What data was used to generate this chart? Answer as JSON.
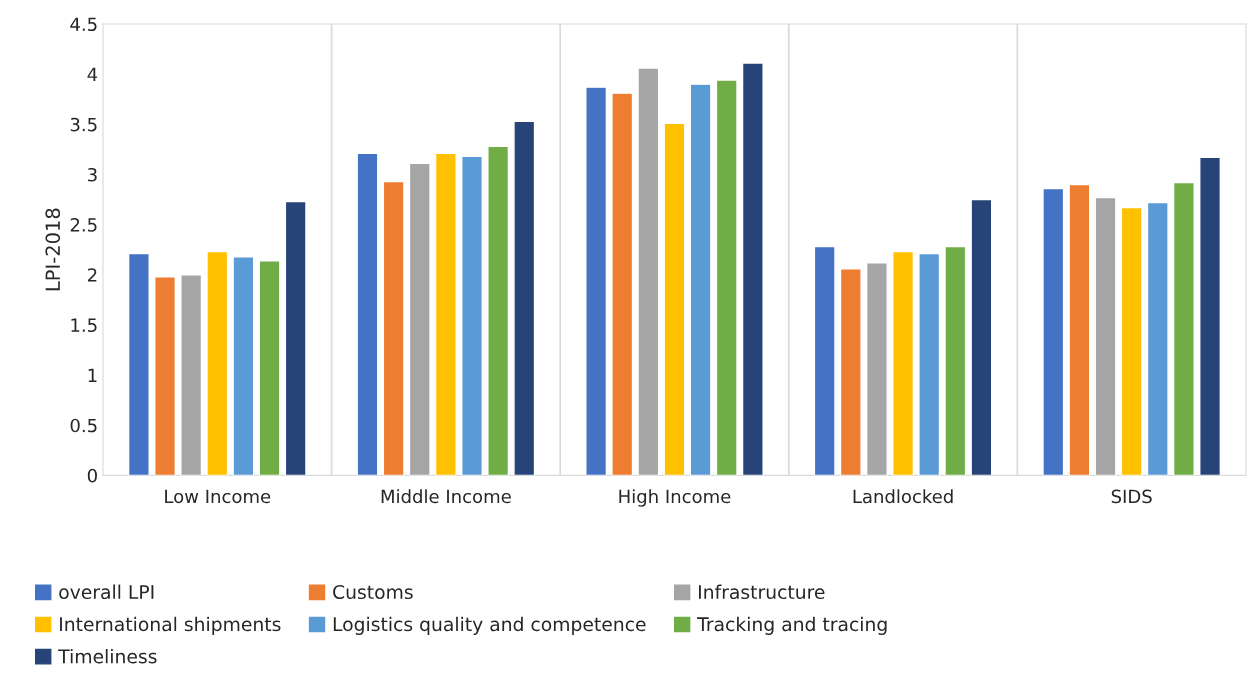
{
  "chart_data": {
    "type": "bar",
    "ylabel": "LPI-2018",
    "categories": [
      "Low Income",
      "Middle Income",
      "High Income",
      "Landlocked",
      "SIDS"
    ],
    "series": [
      {
        "name": "overall LPI",
        "color": "#4472c4",
        "values": [
          2.21,
          3.21,
          3.87,
          2.28,
          2.86
        ]
      },
      {
        "name": "Customs",
        "color": "#ed7d31",
        "values": [
          1.98,
          2.93,
          3.81,
          2.06,
          2.9
        ]
      },
      {
        "name": "Infrastructure",
        "color": "#a5a5a5",
        "values": [
          2.0,
          3.11,
          4.06,
          2.12,
          2.77
        ]
      },
      {
        "name": "International shipments",
        "color": "#ffc000",
        "values": [
          2.23,
          3.21,
          3.51,
          2.23,
          2.67
        ]
      },
      {
        "name": "Logistics quality and competence",
        "color": "#5b9bd5",
        "values": [
          2.18,
          3.18,
          3.9,
          2.21,
          2.72
        ]
      },
      {
        "name": "Tracking and tracing",
        "color": "#70ad47",
        "values": [
          2.14,
          3.28,
          3.94,
          2.28,
          2.92
        ]
      },
      {
        "name": "Timeliness",
        "color": "#264478",
        "values": [
          2.73,
          3.53,
          4.11,
          2.75,
          3.17
        ]
      }
    ],
    "ylim": [
      0,
      4.5
    ],
    "yticks": [
      0,
      0.5,
      1,
      1.5,
      2,
      2.5,
      3,
      3.5,
      4,
      4.5
    ],
    "grid": "x",
    "legend": "bottom"
  }
}
